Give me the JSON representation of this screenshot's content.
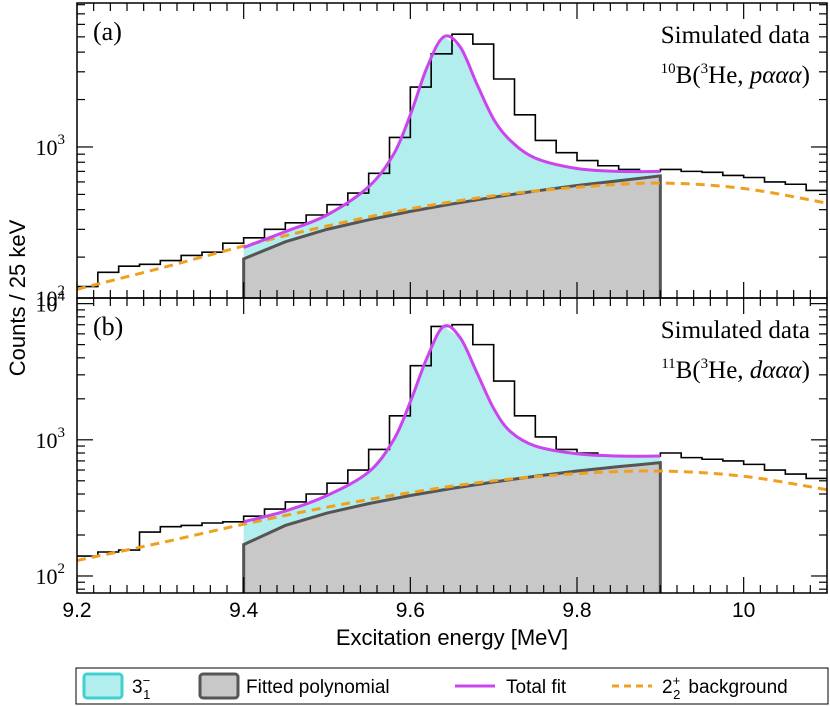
{
  "chart_data": [
    {
      "type": "histogram",
      "panel_label": "(a)",
      "annotation_line1": "Simulated data",
      "reaction": {
        "mass": "10",
        "elem": "B(",
        "proj_mass": "3",
        "proj": "He, ",
        "ejectile": "pααα",
        "close": ")"
      },
      "ylabel": "Counts / 25 keV",
      "xlabel": "Excitation energy [MeV]",
      "yscale": "log",
      "ylim": [
        110,
        8200
      ],
      "xlim": [
        9.2,
        10.1
      ],
      "bin_width": 0.025,
      "bin_start": 9.2,
      "data_counts": [
        130,
        160,
        175,
        180,
        190,
        205,
        215,
        245,
        265,
        300,
        330,
        370,
        430,
        510,
        680,
        1150,
        2400,
        3900,
        5200,
        4500,
        2700,
        1600,
        1100,
        920,
        820,
        760,
        720,
        700,
        720,
        700,
        690,
        660,
        640,
        600,
        580,
        530
      ],
      "total_fit": {
        "x": [
          9.4,
          9.45,
          9.5,
          9.55,
          9.58,
          9.6,
          9.62,
          9.64,
          9.66,
          9.68,
          9.7,
          9.72,
          9.75,
          9.8,
          9.85,
          9.9
        ],
        "y": [
          230,
          290,
          370,
          560,
          900,
          1600,
          3200,
          5000,
          4300,
          2500,
          1500,
          1100,
          850,
          730,
          700,
          700
        ]
      },
      "polynomial_fit": {
        "x": [
          9.4,
          9.45,
          9.5,
          9.55,
          9.6,
          9.65,
          9.7,
          9.75,
          9.8,
          9.85,
          9.9
        ],
        "y": [
          195,
          250,
          300,
          345,
          390,
          435,
          480,
          525,
          570,
          610,
          655
        ]
      },
      "background_2plus": {
        "x": [
          9.2,
          9.3,
          9.4,
          9.5,
          9.6,
          9.7,
          9.8,
          9.9,
          10.0,
          10.1
        ],
        "y": [
          125,
          170,
          235,
          315,
          405,
          490,
          555,
          590,
          545,
          440
        ]
      },
      "fit_range": [
        9.4,
        9.9
      ]
    },
    {
      "type": "histogram",
      "panel_label": "(b)",
      "annotation_line1": "Simulated data",
      "reaction": {
        "mass": "11",
        "elem": "B(",
        "proj_mass": "3",
        "proj": "He, ",
        "ejectile": "dααα",
        "close": ")"
      },
      "yscale": "log",
      "ylim": [
        75,
        11000
      ],
      "xlim": [
        9.2,
        10.1
      ],
      "bin_width": 0.025,
      "bin_start": 9.2,
      "data_counts": [
        140,
        150,
        155,
        210,
        230,
        235,
        245,
        250,
        275,
        310,
        350,
        400,
        480,
        600,
        850,
        1500,
        3500,
        6800,
        7000,
        5000,
        2700,
        1500,
        1050,
        850,
        800,
        770,
        760,
        760,
        800,
        740,
        720,
        700,
        660,
        600,
        560,
        520
      ],
      "total_fit": {
        "x": [
          9.4,
          9.45,
          9.5,
          9.55,
          9.58,
          9.6,
          9.62,
          9.64,
          9.66,
          9.68,
          9.7,
          9.72,
          9.75,
          9.8,
          9.85,
          9.9
        ],
        "y": [
          250,
          300,
          390,
          580,
          1000,
          1900,
          4000,
          6800,
          5600,
          3100,
          1700,
          1150,
          900,
          790,
          760,
          760
        ]
      },
      "polynomial_fit": {
        "x": [
          9.4,
          9.45,
          9.5,
          9.55,
          9.6,
          9.65,
          9.7,
          9.75,
          9.8,
          9.85,
          9.9
        ],
        "y": [
          170,
          235,
          290,
          340,
          390,
          440,
          490,
          540,
          590,
          635,
          680
        ]
      },
      "background_2plus": {
        "x": [
          9.2,
          9.3,
          9.4,
          9.5,
          9.6,
          9.7,
          9.8,
          9.9,
          10.0,
          10.1
        ],
        "y": [
          130,
          175,
          240,
          320,
          410,
          500,
          565,
          590,
          540,
          430
        ]
      },
      "fit_range": [
        9.4,
        9.9
      ]
    }
  ],
  "axes": {
    "x_ticks": [
      "9.2",
      "9.4",
      "9.6",
      "9.8",
      "10"
    ],
    "x_tick_values": [
      9.2,
      9.4,
      9.6,
      9.8,
      10.0
    ],
    "a_y_ticks": [
      {
        "base": "10",
        "exp": "2",
        "value": 100
      },
      {
        "base": "10",
        "exp": "3",
        "value": 1000
      }
    ],
    "b_y_ticks": [
      {
        "base": "10",
        "exp": "2",
        "value": 100
      },
      {
        "base": "10",
        "exp": "3",
        "value": 1000
      },
      {
        "base": "10",
        "exp": "4",
        "value": 10000
      }
    ]
  },
  "legend": {
    "entries": [
      {
        "label": "3",
        "sup": "−",
        "sub": "1"
      },
      {
        "label": "Fitted polynomial"
      },
      {
        "label": "Total fit"
      },
      {
        "label": "2",
        "sup": "+",
        "sub": "2",
        "suffix": "background"
      }
    ]
  },
  "colors": {
    "peak_fill": "#b3eeee",
    "peak_edge": "#40d0d0",
    "poly_fill": "#c8c8c8",
    "poly_line": "#555555",
    "total_fit": "#cc44ee",
    "background": "#f0a020",
    "data": "#000000"
  }
}
